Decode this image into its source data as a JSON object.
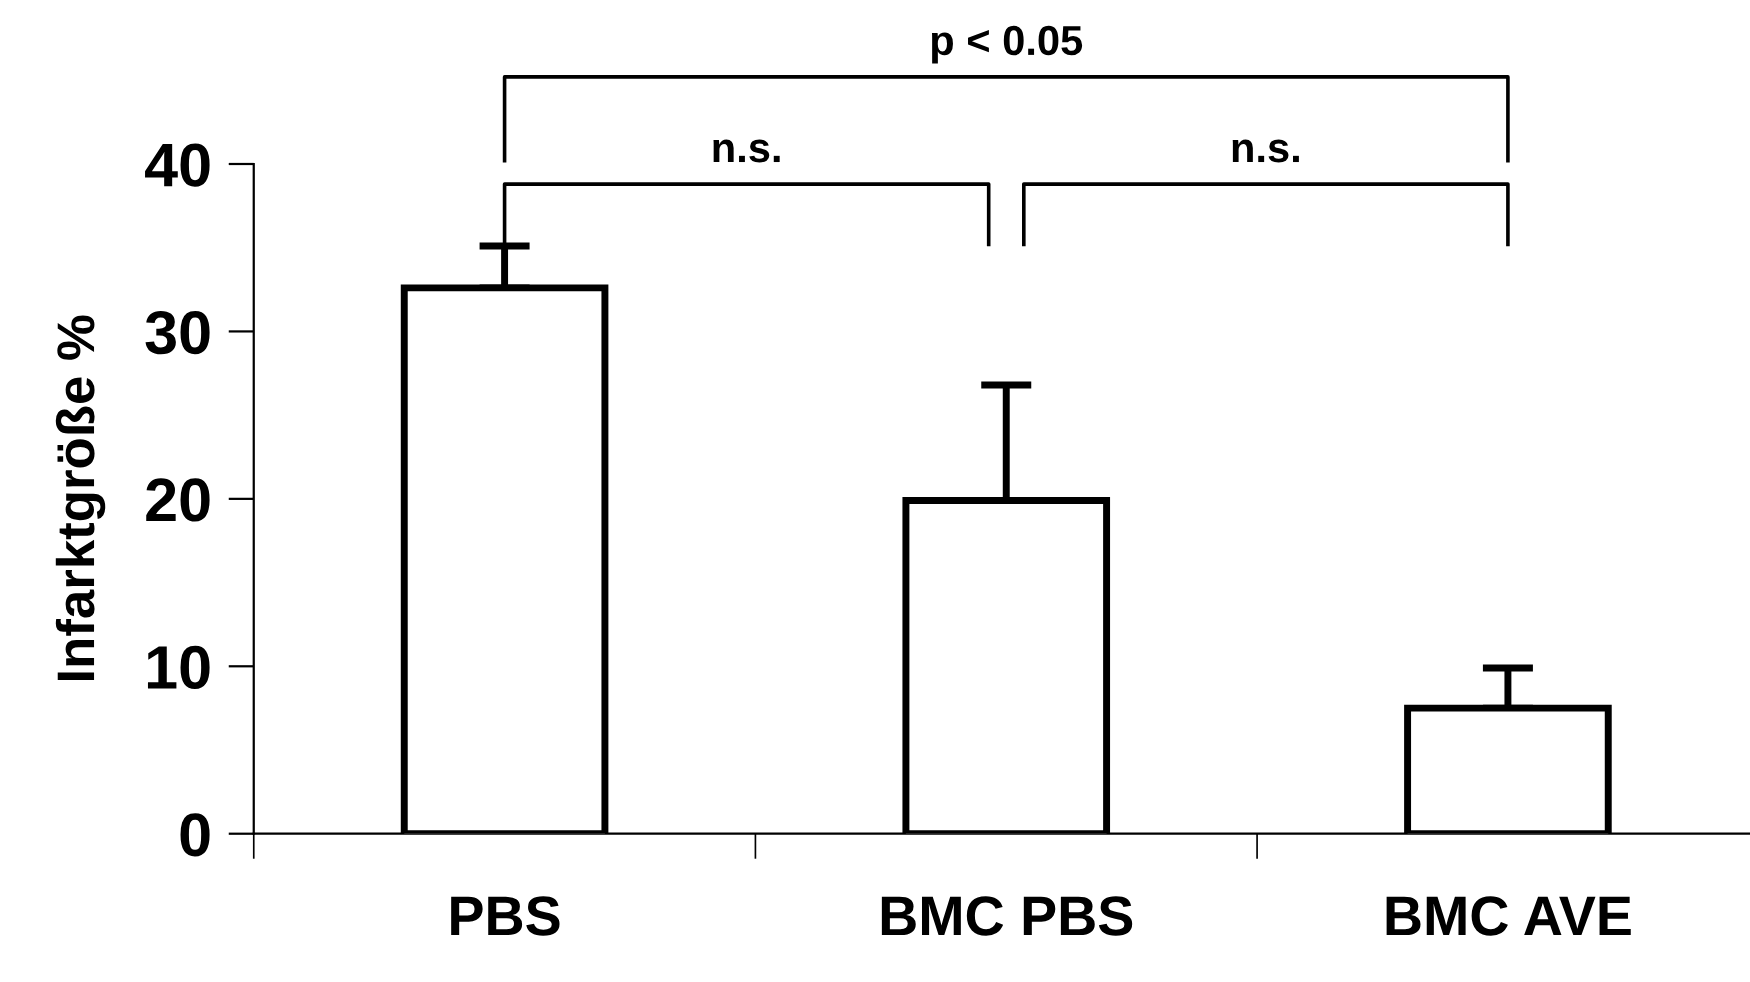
{
  "chart_data": {
    "type": "bar",
    "categories": [
      "PBS",
      "BMC PBS",
      "BMC AVE"
    ],
    "values": [
      32.6,
      19.9,
      7.5
    ],
    "errors": [
      [
        32.6,
        35.1
      ],
      [
        19.9,
        26.8
      ],
      [
        7.5,
        9.9
      ]
    ],
    "color": "#ffffff",
    "ylabel": "Infarktgröße %",
    "ylim": [
      0,
      40
    ],
    "yticks": [
      0,
      10,
      20,
      30,
      40
    ],
    "grid": false,
    "annotations": [
      "n.s.",
      "n.s.",
      "p < 0.05"
    ]
  }
}
